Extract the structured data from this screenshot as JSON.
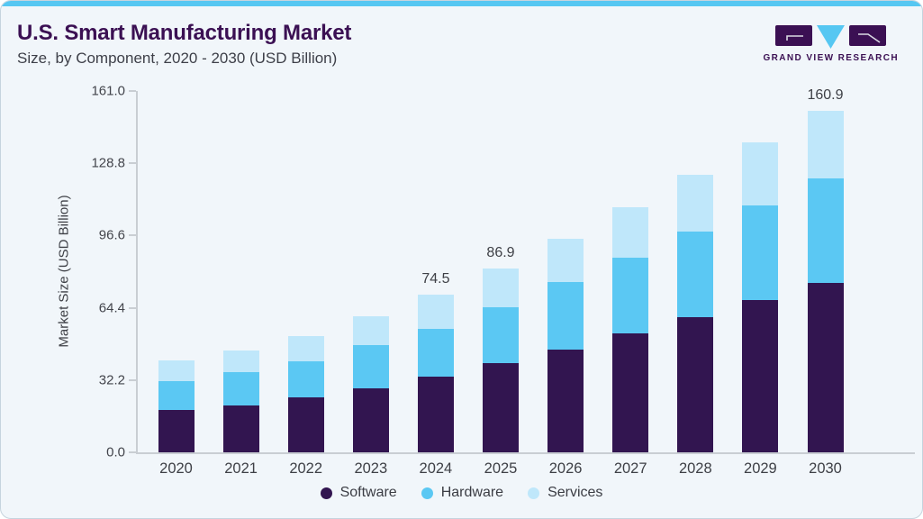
{
  "header": {
    "title": "U.S. Smart Manufacturing Market",
    "subtitle": "Size, by Component, 2020 - 2030 (USD Billion)"
  },
  "logo": {
    "text": "GRAND VIEW RESEARCH"
  },
  "colors": {
    "accent_top_bar": "#56c7f2",
    "panel_background": "#f1f6fa",
    "panel_border": "#c6d4de",
    "title_purple": "#3b1053",
    "axis_gray": "#c9ced3",
    "text_gray": "#3e4046",
    "software": "#321550",
    "hardware": "#5bc8f3",
    "services": "#bfe7fa"
  },
  "chart_data": {
    "type": "bar",
    "stacked": true,
    "title": "U.S. Smart Manufacturing Market Size, by Component, 2020 - 2030 (USD Billion)",
    "categories": [
      "2020",
      "2021",
      "2022",
      "2023",
      "2024",
      "2025",
      "2026",
      "2027",
      "2028",
      "2029",
      "2030"
    ],
    "series": [
      {
        "name": "Software",
        "color": "#321550",
        "values": [
          20.1,
          22.3,
          25.8,
          30.1,
          35.6,
          42.0,
          48.4,
          55.9,
          63.7,
          71.7,
          80.0
        ]
      },
      {
        "name": "Hardware",
        "color": "#5bc8f3",
        "values": [
          13.4,
          15.4,
          17.2,
          20.4,
          22.8,
          26.6,
          31.8,
          35.7,
          40.3,
          44.7,
          49.3
        ]
      },
      {
        "name": "Services",
        "color": "#bfe7fa",
        "values": [
          9.9,
          10.5,
          11.9,
          13.6,
          16.1,
          18.3,
          20.6,
          23.9,
          27.0,
          29.9,
          31.6
        ]
      }
    ],
    "totals_estimated": [
      43.4,
      48.2,
      54.9,
      64.1,
      74.5,
      86.9,
      100.8,
      115.5,
      131.0,
      146.3,
      160.9
    ],
    "labeled_totals": {
      "2024": "74.5",
      "2025": "86.9",
      "2030": "160.9"
    },
    "xlabel": "",
    "ylabel": "Market Size (USD Billion)",
    "yticks": [
      "0.0",
      "32.2",
      "64.4",
      "96.6",
      "128.8",
      "161.0"
    ],
    "ylim": [
      0,
      161
    ],
    "grid": false,
    "legend_position": "bottom"
  }
}
